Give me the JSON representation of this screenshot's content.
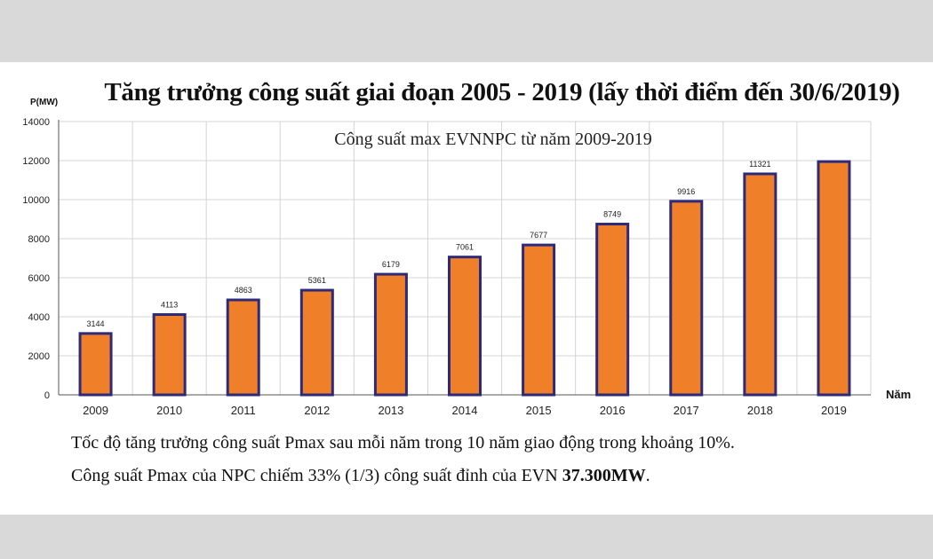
{
  "chart_data": {
    "type": "bar",
    "title": "Tăng trưởng công suất giai đoạn 2005 - 2019 (lấy thời điểm đến 30/6/2019)",
    "subtitle": "Công suất max EVNNPC từ năm 2009-2019",
    "ylabel": "P(MW)",
    "xlabel": "Năm",
    "categories": [
      "2009",
      "2010",
      "2011",
      "2012",
      "2013",
      "2014",
      "2015",
      "2016",
      "2017",
      "2018",
      "2019"
    ],
    "values": [
      3144,
      4113,
      4863,
      5361,
      6179,
      7061,
      7677,
      8749,
      9916,
      11321,
      11950
    ],
    "data_labels": [
      "3144",
      "4113",
      "4863",
      "5361",
      "6179",
      "7061",
      "7677",
      "8749",
      "9916",
      "11321",
      ""
    ],
    "ylim": [
      0,
      14000
    ],
    "yticks": [
      0,
      2000,
      4000,
      6000,
      8000,
      10000,
      12000,
      14000
    ],
    "grid": true,
    "colors": {
      "bar_fill": "#f07f2a",
      "bar_border": "#2e2a7a",
      "grid": "#d4d4d4"
    }
  },
  "notes": {
    "line1": "Tốc độ tăng trưởng công suất Pmax sau mỗi năm trong 10 năm giao động trong khoảng 10%.",
    "line2_prefix": "Công suất Pmax của NPC chiếm 33% (1/3) công suất đỉnh của EVN ",
    "line2_bold": "37.300MW",
    "line2_suffix": "."
  }
}
